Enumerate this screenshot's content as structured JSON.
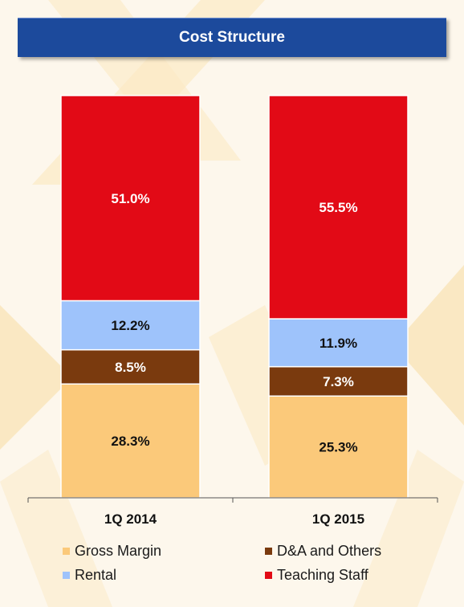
{
  "title": "Cost Structure",
  "chart_data": {
    "type": "bar",
    "stacked": true,
    "categories": [
      "1Q 2014",
      "1Q 2015"
    ],
    "series": [
      {
        "name": "Gross Margin",
        "color": "#fbc97a",
        "values": [
          28.3,
          25.3
        ],
        "labels": [
          "28.3%",
          "25.3%"
        ]
      },
      {
        "name": "D&A and Others",
        "color": "#7a3a0e",
        "values": [
          8.5,
          7.3
        ],
        "labels": [
          "8.5%",
          "7.3%"
        ]
      },
      {
        "name": "Rental",
        "color": "#9ec3fb",
        "values": [
          12.2,
          11.9
        ],
        "labels": [
          "12.2%",
          "11.9%"
        ]
      },
      {
        "name": "Teaching Staff",
        "color": "#e20a16",
        "values": [
          51.0,
          55.5
        ],
        "labels": [
          "51.0%",
          "55.5%"
        ]
      }
    ],
    "ylim": [
      0,
      100
    ],
    "legend_position": "bottom",
    "grid": false
  }
}
